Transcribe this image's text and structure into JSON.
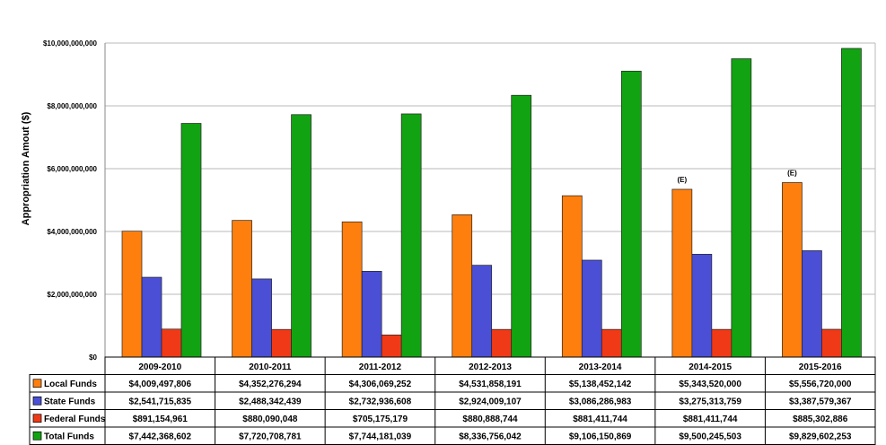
{
  "chart_data": {
    "type": "bar",
    "title": "",
    "xlabel": "",
    "ylabel": "Appropriation Amout ($)",
    "ylim": [
      0,
      10000000000
    ],
    "y_ticks": [
      {
        "value": 0,
        "label": "$0"
      },
      {
        "value": 2000000000,
        "label": "$2,000,000,000"
      },
      {
        "value": 4000000000,
        "label": "$4,000,000,000"
      },
      {
        "value": 6000000000,
        "label": "$6,000,000,000"
      },
      {
        "value": 8000000000,
        "label": "$8,000,000,000"
      },
      {
        "value": 10000000000,
        "label": "$10,000,000,000"
      }
    ],
    "grid": true,
    "legend": "data-table-left",
    "categories": [
      "2009-2010",
      "2010-2011",
      "2011-2012",
      "2012-2013",
      "2013-2014",
      "2014-2015",
      "2015-2016"
    ],
    "series": [
      {
        "name": "Local Funds",
        "color": "#ff7f0e",
        "values": [
          4009497806,
          4352276294,
          4306069252,
          4531858191,
          5138452142,
          5343520000,
          5556720000
        ],
        "display": [
          "$4,009,497,806",
          "$4,352,276,294",
          "$4,306,069,252",
          "$4,531,858,191",
          "$5,138,452,142",
          "$5,343,520,000",
          "$5,556,720,000"
        ],
        "annotations": [
          "",
          "",
          "",
          "",
          "",
          "(E)",
          "(E)"
        ]
      },
      {
        "name": "State Funds",
        "color": "#4a4fd6",
        "values": [
          2541715835,
          2488342439,
          2732936608,
          2924009107,
          3086286983,
          3275313759,
          3387579367
        ],
        "display": [
          "$2,541,715,835",
          "$2,488,342,439",
          "$2,732,936,608",
          "$2,924,009,107",
          "$3,086,286,983",
          "$3,275,313,759",
          "$3,387,579,367"
        ]
      },
      {
        "name": "Federal Funds",
        "color": "#f03a17",
        "values": [
          891154961,
          880090048,
          705175179,
          880888744,
          881411744,
          881411744,
          885302886
        ],
        "display": [
          "$891,154,961",
          "$880,090,048",
          "$705,175,179",
          "$880,888,744",
          "$881,411,744",
          "$881,411,744",
          "$885,302,886"
        ]
      },
      {
        "name": "Total Funds",
        "color": "#12a312",
        "values": [
          7442368602,
          7720708781,
          7744181039,
          8336756042,
          9106150869,
          9500245503,
          9829602253
        ],
        "display": [
          "$7,442,368,602",
          "$7,720,708,781",
          "$7,744,181,039",
          "$8,336,756,042",
          "$9,106,150,869",
          "$9,500,245,503",
          "$9,829,602,253"
        ]
      }
    ]
  }
}
